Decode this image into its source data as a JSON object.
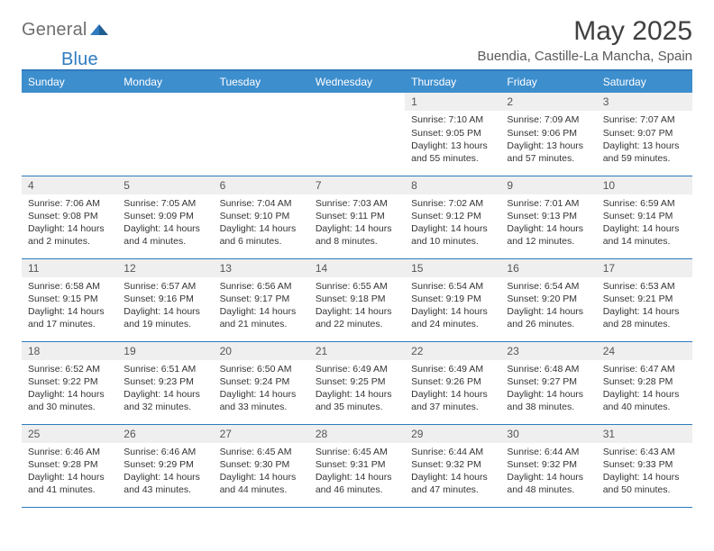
{
  "logo": {
    "word1": "General",
    "word2": "Blue"
  },
  "title": "May 2025",
  "location": "Buendia, Castille-La Mancha, Spain",
  "colors": {
    "header_bar": "#3d8ecd",
    "border": "#2f7bbf",
    "daynum_bg": "#efefef",
    "text": "#343434",
    "logo_gray": "#6f6f6f",
    "logo_blue": "#2f7bbf",
    "background": "#ffffff"
  },
  "day_headers": [
    "Sunday",
    "Monday",
    "Tuesday",
    "Wednesday",
    "Thursday",
    "Friday",
    "Saturday"
  ],
  "weeks": [
    [
      {
        "n": "",
        "sunrise": "",
        "sunset": "",
        "daylight": ""
      },
      {
        "n": "",
        "sunrise": "",
        "sunset": "",
        "daylight": ""
      },
      {
        "n": "",
        "sunrise": "",
        "sunset": "",
        "daylight": ""
      },
      {
        "n": "",
        "sunrise": "",
        "sunset": "",
        "daylight": ""
      },
      {
        "n": "1",
        "sunrise": "Sunrise: 7:10 AM",
        "sunset": "Sunset: 9:05 PM",
        "daylight": "Daylight: 13 hours and 55 minutes."
      },
      {
        "n": "2",
        "sunrise": "Sunrise: 7:09 AM",
        "sunset": "Sunset: 9:06 PM",
        "daylight": "Daylight: 13 hours and 57 minutes."
      },
      {
        "n": "3",
        "sunrise": "Sunrise: 7:07 AM",
        "sunset": "Sunset: 9:07 PM",
        "daylight": "Daylight: 13 hours and 59 minutes."
      }
    ],
    [
      {
        "n": "4",
        "sunrise": "Sunrise: 7:06 AM",
        "sunset": "Sunset: 9:08 PM",
        "daylight": "Daylight: 14 hours and 2 minutes."
      },
      {
        "n": "5",
        "sunrise": "Sunrise: 7:05 AM",
        "sunset": "Sunset: 9:09 PM",
        "daylight": "Daylight: 14 hours and 4 minutes."
      },
      {
        "n": "6",
        "sunrise": "Sunrise: 7:04 AM",
        "sunset": "Sunset: 9:10 PM",
        "daylight": "Daylight: 14 hours and 6 minutes."
      },
      {
        "n": "7",
        "sunrise": "Sunrise: 7:03 AM",
        "sunset": "Sunset: 9:11 PM",
        "daylight": "Daylight: 14 hours and 8 minutes."
      },
      {
        "n": "8",
        "sunrise": "Sunrise: 7:02 AM",
        "sunset": "Sunset: 9:12 PM",
        "daylight": "Daylight: 14 hours and 10 minutes."
      },
      {
        "n": "9",
        "sunrise": "Sunrise: 7:01 AM",
        "sunset": "Sunset: 9:13 PM",
        "daylight": "Daylight: 14 hours and 12 minutes."
      },
      {
        "n": "10",
        "sunrise": "Sunrise: 6:59 AM",
        "sunset": "Sunset: 9:14 PM",
        "daylight": "Daylight: 14 hours and 14 minutes."
      }
    ],
    [
      {
        "n": "11",
        "sunrise": "Sunrise: 6:58 AM",
        "sunset": "Sunset: 9:15 PM",
        "daylight": "Daylight: 14 hours and 17 minutes."
      },
      {
        "n": "12",
        "sunrise": "Sunrise: 6:57 AM",
        "sunset": "Sunset: 9:16 PM",
        "daylight": "Daylight: 14 hours and 19 minutes."
      },
      {
        "n": "13",
        "sunrise": "Sunrise: 6:56 AM",
        "sunset": "Sunset: 9:17 PM",
        "daylight": "Daylight: 14 hours and 21 minutes."
      },
      {
        "n": "14",
        "sunrise": "Sunrise: 6:55 AM",
        "sunset": "Sunset: 9:18 PM",
        "daylight": "Daylight: 14 hours and 22 minutes."
      },
      {
        "n": "15",
        "sunrise": "Sunrise: 6:54 AM",
        "sunset": "Sunset: 9:19 PM",
        "daylight": "Daylight: 14 hours and 24 minutes."
      },
      {
        "n": "16",
        "sunrise": "Sunrise: 6:54 AM",
        "sunset": "Sunset: 9:20 PM",
        "daylight": "Daylight: 14 hours and 26 minutes."
      },
      {
        "n": "17",
        "sunrise": "Sunrise: 6:53 AM",
        "sunset": "Sunset: 9:21 PM",
        "daylight": "Daylight: 14 hours and 28 minutes."
      }
    ],
    [
      {
        "n": "18",
        "sunrise": "Sunrise: 6:52 AM",
        "sunset": "Sunset: 9:22 PM",
        "daylight": "Daylight: 14 hours and 30 minutes."
      },
      {
        "n": "19",
        "sunrise": "Sunrise: 6:51 AM",
        "sunset": "Sunset: 9:23 PM",
        "daylight": "Daylight: 14 hours and 32 minutes."
      },
      {
        "n": "20",
        "sunrise": "Sunrise: 6:50 AM",
        "sunset": "Sunset: 9:24 PM",
        "daylight": "Daylight: 14 hours and 33 minutes."
      },
      {
        "n": "21",
        "sunrise": "Sunrise: 6:49 AM",
        "sunset": "Sunset: 9:25 PM",
        "daylight": "Daylight: 14 hours and 35 minutes."
      },
      {
        "n": "22",
        "sunrise": "Sunrise: 6:49 AM",
        "sunset": "Sunset: 9:26 PM",
        "daylight": "Daylight: 14 hours and 37 minutes."
      },
      {
        "n": "23",
        "sunrise": "Sunrise: 6:48 AM",
        "sunset": "Sunset: 9:27 PM",
        "daylight": "Daylight: 14 hours and 38 minutes."
      },
      {
        "n": "24",
        "sunrise": "Sunrise: 6:47 AM",
        "sunset": "Sunset: 9:28 PM",
        "daylight": "Daylight: 14 hours and 40 minutes."
      }
    ],
    [
      {
        "n": "25",
        "sunrise": "Sunrise: 6:46 AM",
        "sunset": "Sunset: 9:28 PM",
        "daylight": "Daylight: 14 hours and 41 minutes."
      },
      {
        "n": "26",
        "sunrise": "Sunrise: 6:46 AM",
        "sunset": "Sunset: 9:29 PM",
        "daylight": "Daylight: 14 hours and 43 minutes."
      },
      {
        "n": "27",
        "sunrise": "Sunrise: 6:45 AM",
        "sunset": "Sunset: 9:30 PM",
        "daylight": "Daylight: 14 hours and 44 minutes."
      },
      {
        "n": "28",
        "sunrise": "Sunrise: 6:45 AM",
        "sunset": "Sunset: 9:31 PM",
        "daylight": "Daylight: 14 hours and 46 minutes."
      },
      {
        "n": "29",
        "sunrise": "Sunrise: 6:44 AM",
        "sunset": "Sunset: 9:32 PM",
        "daylight": "Daylight: 14 hours and 47 minutes."
      },
      {
        "n": "30",
        "sunrise": "Sunrise: 6:44 AM",
        "sunset": "Sunset: 9:32 PM",
        "daylight": "Daylight: 14 hours and 48 minutes."
      },
      {
        "n": "31",
        "sunrise": "Sunrise: 6:43 AM",
        "sunset": "Sunset: 9:33 PM",
        "daylight": "Daylight: 14 hours and 50 minutes."
      }
    ]
  ]
}
